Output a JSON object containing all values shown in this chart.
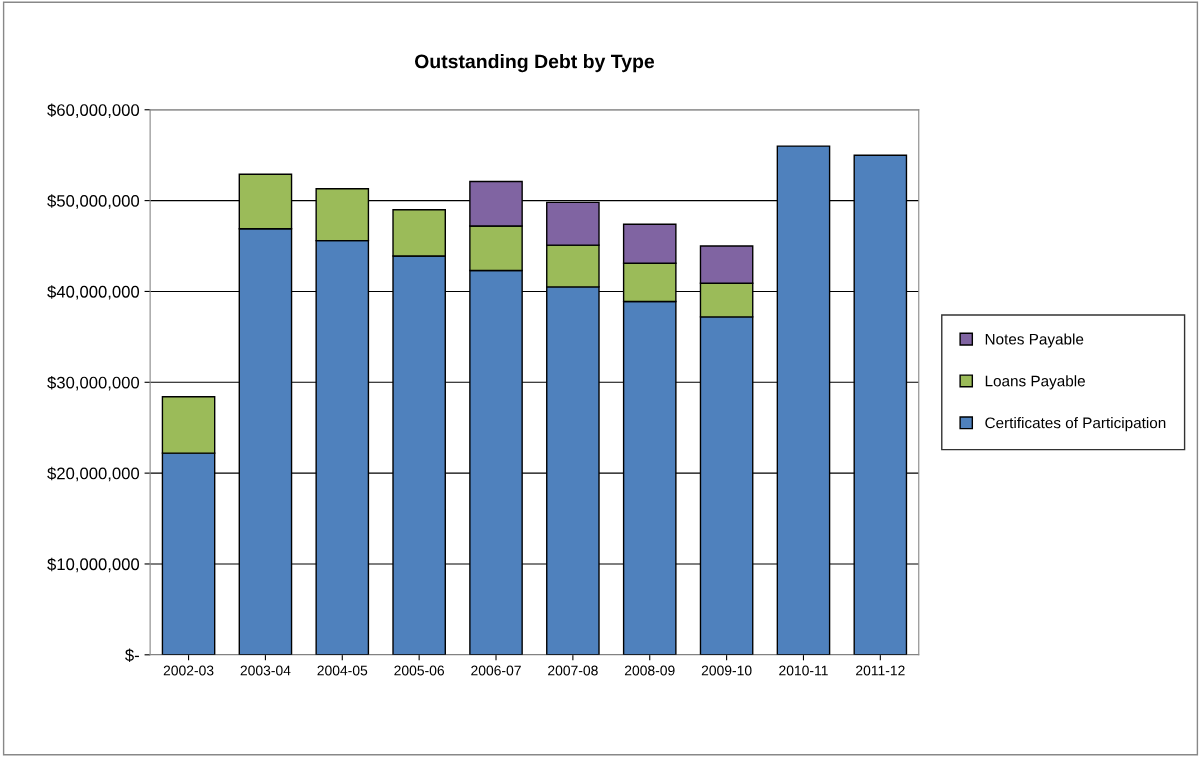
{
  "chart_data": {
    "type": "bar",
    "title": "Outstanding Debt by Type",
    "stacked": true,
    "categories": [
      "2002-03",
      "2003-04",
      "2004-05",
      "2005-06",
      "2006-07",
      "2007-08",
      "2008-09",
      "2009-10",
      "2010-11",
      "2011-12"
    ],
    "series": [
      {
        "name": "Certificates of Participation",
        "color": "#4f81bd",
        "values": [
          22200000,
          46900000,
          45600000,
          43900000,
          42300000,
          40500000,
          38900000,
          37200000,
          56000000,
          55000000
        ]
      },
      {
        "name": "Loans Payable",
        "color": "#9bbb59",
        "values": [
          6200000,
          6000000,
          5700000,
          5100000,
          4900000,
          4600000,
          4200000,
          3700000,
          null,
          null
        ]
      },
      {
        "name": "Notes Payable",
        "color": "#8064a2",
        "values": [
          null,
          null,
          null,
          null,
          4900000,
          4700000,
          4300000,
          4100000,
          null,
          null
        ]
      }
    ],
    "ylim": [
      0,
      60000000
    ],
    "yticks": [
      {
        "value": 0,
        "label": "$-"
      },
      {
        "value": 10000000,
        "label": "$10,000,000"
      },
      {
        "value": 20000000,
        "label": "$20,000,000"
      },
      {
        "value": 30000000,
        "label": "$30,000,000"
      },
      {
        "value": 40000000,
        "label": "$40,000,000"
      },
      {
        "value": 50000000,
        "label": "$50,000,000"
      },
      {
        "value": 60000000,
        "label": "$60,000,000"
      }
    ],
    "grid": "y",
    "legend": "right"
  }
}
